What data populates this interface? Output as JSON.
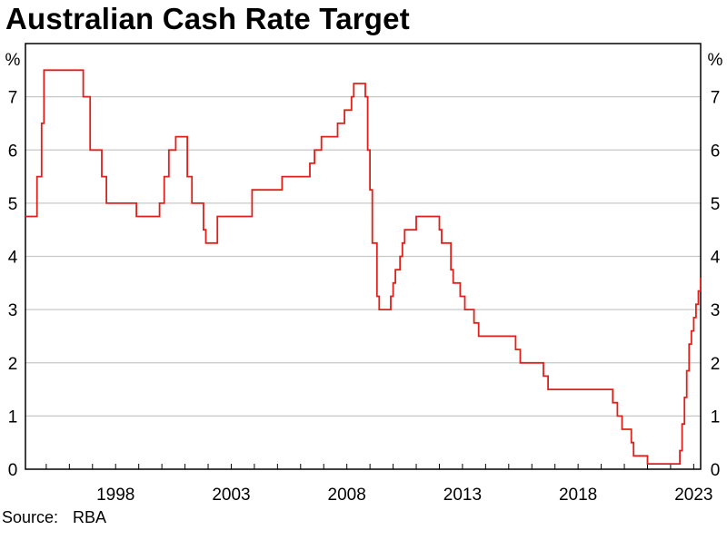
{
  "title": "Australian Cash Rate Target",
  "source_label": "Source:",
  "source_value": "RBA",
  "colors": {
    "line": "#e0201b",
    "grid": "#c8c8c8",
    "frame": "#000000"
  },
  "chart_data": {
    "type": "line",
    "title": "Australian Cash Rate Target",
    "ylabel_left": "%",
    "ylabel_right": "%",
    "xlim": [
      1994.1,
      2023.3
    ],
    "ylim": [
      0,
      8
    ],
    "yticks": [
      0,
      1,
      2,
      3,
      4,
      5,
      6,
      7
    ],
    "xticks": [
      1998,
      2003,
      2008,
      2013,
      2018,
      2023
    ],
    "grid": true,
    "series": [
      {
        "step": true,
        "points": [
          [
            1994.1,
            4.75
          ],
          [
            1994.6,
            5.5
          ],
          [
            1994.8,
            6.5
          ],
          [
            1994.9,
            7.5
          ],
          [
            1996.6,
            7.0
          ],
          [
            1996.9,
            6.0
          ],
          [
            1997.4,
            5.5
          ],
          [
            1997.6,
            5.0
          ],
          [
            1998.9,
            4.75
          ],
          [
            1999.9,
            5.0
          ],
          [
            2000.1,
            5.5
          ],
          [
            2000.3,
            6.0
          ],
          [
            2000.6,
            6.25
          ],
          [
            2001.1,
            5.5
          ],
          [
            2001.3,
            5.0
          ],
          [
            2001.8,
            4.5
          ],
          [
            2001.9,
            4.25
          ],
          [
            2002.4,
            4.75
          ],
          [
            2003.9,
            5.25
          ],
          [
            2005.2,
            5.5
          ],
          [
            2006.4,
            5.75
          ],
          [
            2006.6,
            6.0
          ],
          [
            2006.9,
            6.25
          ],
          [
            2007.6,
            6.5
          ],
          [
            2007.9,
            6.75
          ],
          [
            2008.2,
            7.0
          ],
          [
            2008.3,
            7.25
          ],
          [
            2008.8,
            7.0
          ],
          [
            2008.9,
            6.0
          ],
          [
            2009.0,
            5.25
          ],
          [
            2009.1,
            4.25
          ],
          [
            2009.3,
            3.25
          ],
          [
            2009.4,
            3.0
          ],
          [
            2009.9,
            3.25
          ],
          [
            2010.0,
            3.5
          ],
          [
            2010.1,
            3.75
          ],
          [
            2010.3,
            4.0
          ],
          [
            2010.4,
            4.25
          ],
          [
            2010.5,
            4.5
          ],
          [
            2011.0,
            4.75
          ],
          [
            2012.0,
            4.5
          ],
          [
            2012.1,
            4.25
          ],
          [
            2012.5,
            3.75
          ],
          [
            2012.6,
            3.5
          ],
          [
            2012.9,
            3.25
          ],
          [
            2013.1,
            3.0
          ],
          [
            2013.5,
            2.75
          ],
          [
            2013.7,
            2.5
          ],
          [
            2015.3,
            2.25
          ],
          [
            2015.5,
            2.0
          ],
          [
            2016.5,
            1.75
          ],
          [
            2016.7,
            1.5
          ],
          [
            2019.5,
            1.25
          ],
          [
            2019.7,
            1.0
          ],
          [
            2019.9,
            0.75
          ],
          [
            2020.3,
            0.5
          ],
          [
            2020.4,
            0.25
          ],
          [
            2021.0,
            0.1
          ],
          [
            2022.4,
            0.35
          ],
          [
            2022.5,
            0.85
          ],
          [
            2022.6,
            1.35
          ],
          [
            2022.7,
            1.85
          ],
          [
            2022.8,
            2.35
          ],
          [
            2022.9,
            2.6
          ],
          [
            2023.0,
            2.85
          ],
          [
            2023.1,
            3.1
          ],
          [
            2023.2,
            3.35
          ],
          [
            2023.3,
            3.6
          ]
        ]
      }
    ]
  }
}
